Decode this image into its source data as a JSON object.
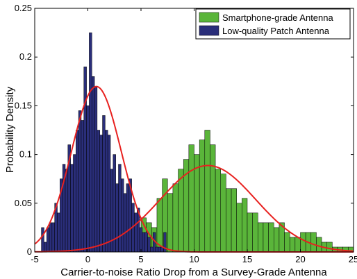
{
  "chart_data": {
    "type": "bar",
    "xlabel": "Carrier-to-noise Ratio Drop from a Survey-Grade Antenna",
    "ylabel": "Probability Density",
    "xlim": [
      -5,
      25
    ],
    "ylim": [
      0,
      0.25
    ],
    "xticks": [
      "-5",
      "0",
      "5",
      "10",
      "15",
      "20",
      "25"
    ],
    "yticks": [
      "0",
      "0.05",
      "0.1",
      "0.15",
      "0.2",
      "0.25"
    ],
    "grid": false,
    "legend_position": "top-right",
    "bin_width": 0.5,
    "series": [
      {
        "name": "Smartphone-grade Antenna",
        "color": "#5ab53a",
        "x": [
          5.25,
          5.75,
          6.25,
          6.75,
          7.25,
          7.75,
          8.25,
          8.75,
          9.25,
          9.75,
          10.25,
          10.75,
          11.25,
          11.75,
          12.25,
          12.75,
          13.25,
          13.75,
          14.25,
          14.75,
          15.25,
          15.75,
          16.25,
          16.75,
          17.25,
          17.75,
          18.25,
          18.75,
          19.25,
          19.75,
          20.25,
          20.75,
          21.25,
          21.75,
          22.25,
          22.75,
          23.25,
          23.75,
          24.25,
          24.75
        ],
        "values": [
          0.035,
          0.03,
          0.025,
          0.055,
          0.075,
          0.06,
          0.07,
          0.085,
          0.095,
          0.11,
          0.1,
          0.115,
          0.125,
          0.11,
          0.085,
          0.08,
          0.065,
          0.065,
          0.05,
          0.055,
          0.04,
          0.04,
          0.03,
          0.03,
          0.03,
          0.025,
          0.03,
          0.02,
          0.015,
          0.015,
          0.02,
          0.02,
          0.02,
          0.015,
          0.01,
          0.01,
          0.005,
          0.005,
          0.005,
          0.005
        ]
      },
      {
        "name": "Low-quality Patch Antenna",
        "color": "#2a2e7a",
        "x": [
          -4.25,
          -4.0,
          -3.75,
          -3.5,
          -3.25,
          -3.0,
          -2.75,
          -2.5,
          -2.25,
          -2.0,
          -1.75,
          -1.5,
          -1.25,
          -1.0,
          -0.75,
          -0.5,
          -0.25,
          0.0,
          0.25,
          0.5,
          0.75,
          1.0,
          1.25,
          1.5,
          1.75,
          2.0,
          2.25,
          2.5,
          2.75,
          3.0,
          3.25,
          3.5,
          3.75,
          4.0,
          4.25,
          4.5,
          4.75,
          5.0,
          5.25,
          5.5,
          5.75,
          6.0,
          6.25,
          6.5,
          6.75,
          7.0,
          7.25
        ],
        "values": [
          0.025,
          0.01,
          0.025,
          0.03,
          0.03,
          0.05,
          0.04,
          0.075,
          0.09,
          0.085,
          0.11,
          0.09,
          0.1,
          0.125,
          0.145,
          0.135,
          0.19,
          0.15,
          0.225,
          0.18,
          0.17,
          0.125,
          0.12,
          0.14,
          0.125,
          0.12,
          0.085,
          0.1,
          0.07,
          0.09,
          0.075,
          0.06,
          0.07,
          0.075,
          0.05,
          0.04,
          0.045,
          0.025,
          0.02,
          0.02,
          0.015,
          0.005,
          0.02,
          0.005,
          0.005,
          0.005,
          0.02
        ]
      }
    ],
    "fits": [
      {
        "type": "normal",
        "color": "#e8211f",
        "mean": 0.8,
        "sd": 2.35,
        "area": 1.0
      },
      {
        "type": "normal",
        "color": "#e8211f",
        "mean": 11.3,
        "sd": 4.5,
        "area": 1.0
      }
    ]
  }
}
